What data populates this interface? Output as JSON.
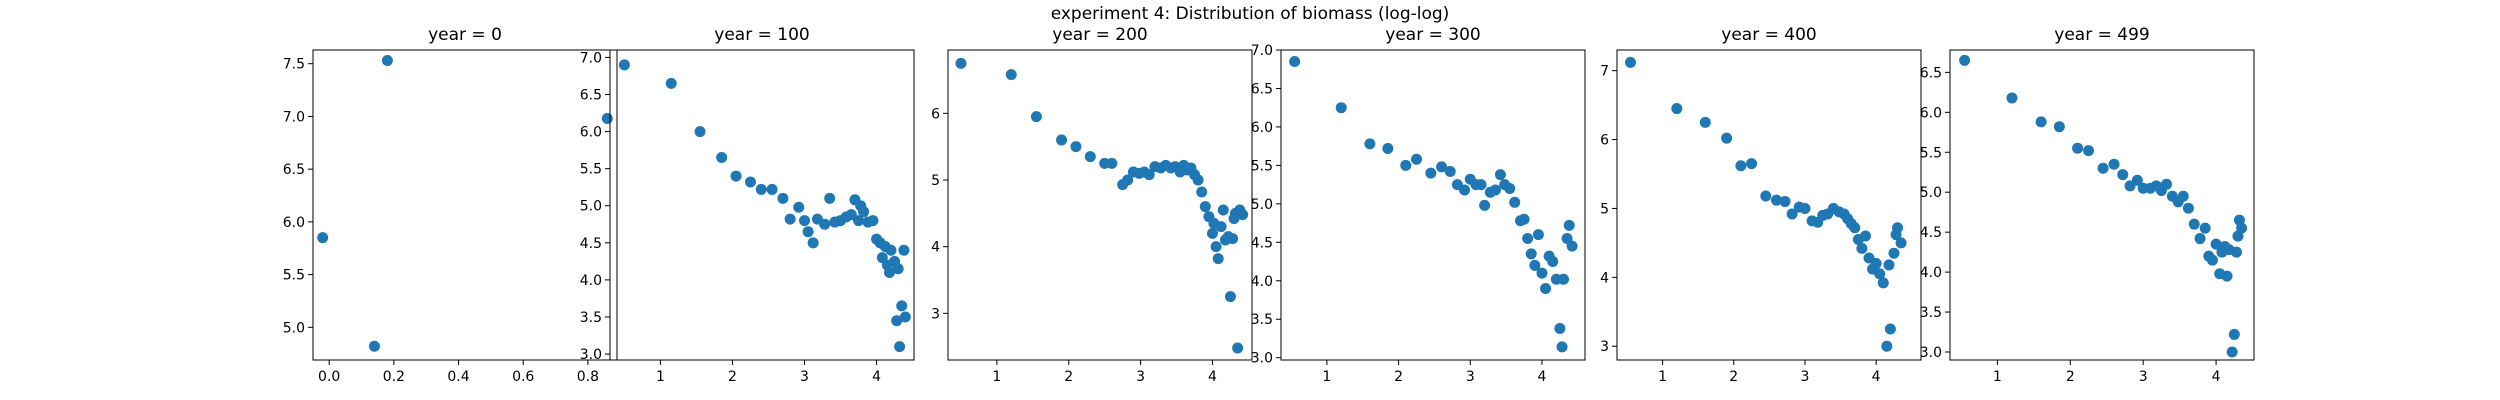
{
  "figure_title": "experiment 4: Distribution of biomass (log-log)",
  "chart_data": [
    {
      "type": "scatter",
      "title": "year = 0",
      "xlim": [
        -0.05,
        0.89
      ],
      "ylim": [
        4.69,
        7.63
      ],
      "xticks": [
        0.0,
        0.2,
        0.4,
        0.6,
        0.8
      ],
      "yticks": [
        5.0,
        5.5,
        6.0,
        6.5,
        7.0,
        7.5
      ],
      "color": "#1f77b4",
      "points": [
        [
          -0.02,
          5.85
        ],
        [
          0.14,
          4.82
        ],
        [
          0.18,
          7.53
        ],
        [
          0.86,
          6.98
        ]
      ]
    },
    {
      "type": "scatter",
      "title": "year = 100",
      "xlim": [
        0.3,
        4.52
      ],
      "ylim": [
        2.92,
        7.1
      ],
      "xticks": [
        1,
        2,
        3,
        4
      ],
      "yticks": [
        3.0,
        3.5,
        4.0,
        4.5,
        5.0,
        5.5,
        6.0,
        6.5,
        7.0
      ],
      "color": "#1f77b4",
      "points": [
        [
          0.5,
          6.9
        ],
        [
          1.15,
          6.65
        ],
        [
          1.55,
          6.0
        ],
        [
          1.85,
          5.65
        ],
        [
          2.05,
          5.4
        ],
        [
          2.25,
          5.32
        ],
        [
          2.4,
          5.22
        ],
        [
          2.55,
          5.22
        ],
        [
          2.7,
          5.1
        ],
        [
          2.8,
          4.82
        ],
        [
          2.92,
          4.98
        ],
        [
          3.0,
          4.8
        ],
        [
          3.05,
          4.65
        ],
        [
          3.12,
          4.5
        ],
        [
          3.18,
          4.82
        ],
        [
          3.28,
          4.75
        ],
        [
          3.35,
          5.1
        ],
        [
          3.42,
          4.78
        ],
        [
          3.5,
          4.8
        ],
        [
          3.58,
          4.85
        ],
        [
          3.65,
          4.88
        ],
        [
          3.7,
          5.08
        ],
        [
          3.75,
          4.8
        ],
        [
          3.78,
          5.0
        ],
        [
          3.82,
          4.92
        ],
        [
          3.88,
          4.78
        ],
        [
          3.95,
          4.8
        ],
        [
          4.0,
          4.55
        ],
        [
          4.05,
          4.5
        ],
        [
          4.08,
          4.3
        ],
        [
          4.12,
          4.45
        ],
        [
          4.15,
          4.2
        ],
        [
          4.18,
          4.1
        ],
        [
          4.2,
          4.4
        ],
        [
          4.25,
          4.25
        ],
        [
          4.28,
          3.45
        ],
        [
          4.3,
          4.15
        ],
        [
          4.32,
          3.1
        ],
        [
          4.35,
          3.65
        ],
        [
          4.38,
          4.4
        ],
        [
          4.4,
          3.5
        ]
      ]
    },
    {
      "type": "scatter",
      "title": "year = 200",
      "xlim": [
        0.32,
        4.55
      ],
      "ylim": [
        2.3,
        6.95
      ],
      "xticks": [
        1,
        2,
        3,
        4
      ],
      "yticks": [
        3,
        4,
        5,
        6
      ],
      "color": "#1f77b4",
      "points": [
        [
          0.5,
          6.75
        ],
        [
          1.2,
          6.58
        ],
        [
          1.55,
          5.95
        ],
        [
          1.9,
          5.6
        ],
        [
          2.1,
          5.5
        ],
        [
          2.3,
          5.35
        ],
        [
          2.5,
          5.25
        ],
        [
          2.6,
          5.25
        ],
        [
          2.75,
          4.93
        ],
        [
          2.82,
          5.0
        ],
        [
          2.9,
          5.12
        ],
        [
          2.98,
          5.1
        ],
        [
          3.05,
          5.12
        ],
        [
          3.12,
          5.08
        ],
        [
          3.2,
          5.2
        ],
        [
          3.28,
          5.18
        ],
        [
          3.35,
          5.22
        ],
        [
          3.42,
          5.18
        ],
        [
          3.48,
          5.2
        ],
        [
          3.55,
          5.12
        ],
        [
          3.6,
          5.22
        ],
        [
          3.65,
          5.15
        ],
        [
          3.7,
          5.18
        ],
        [
          3.75,
          5.08
        ],
        [
          3.8,
          5.0
        ],
        [
          3.85,
          4.82
        ],
        [
          3.9,
          4.6
        ],
        [
          3.95,
          4.45
        ],
        [
          4.0,
          4.2
        ],
        [
          4.02,
          4.35
        ],
        [
          4.05,
          4.0
        ],
        [
          4.08,
          3.82
        ],
        [
          4.12,
          4.3
        ],
        [
          4.15,
          4.55
        ],
        [
          4.18,
          4.1
        ],
        [
          4.22,
          4.15
        ],
        [
          4.25,
          3.25
        ],
        [
          4.28,
          4.12
        ],
        [
          4.3,
          4.42
        ],
        [
          4.32,
          4.5
        ],
        [
          4.35,
          2.48
        ],
        [
          4.38,
          4.55
        ],
        [
          4.42,
          4.48
        ]
      ]
    },
    {
      "type": "scatter",
      "title": "year = 300",
      "xlim": [
        0.36,
        4.6
      ],
      "ylim": [
        2.97,
        7.0
      ],
      "xticks": [
        1,
        2,
        3,
        4
      ],
      "yticks": [
        3.0,
        3.5,
        4.0,
        4.5,
        5.0,
        5.5,
        6.0,
        6.5,
        7.0
      ],
      "color": "#1f77b4",
      "points": [
        [
          0.55,
          6.85
        ],
        [
          1.2,
          6.25
        ],
        [
          1.6,
          5.78
        ],
        [
          1.85,
          5.72
        ],
        [
          2.1,
          5.5
        ],
        [
          2.25,
          5.58
        ],
        [
          2.45,
          5.4
        ],
        [
          2.6,
          5.48
        ],
        [
          2.72,
          5.42
        ],
        [
          2.82,
          5.25
        ],
        [
          2.92,
          5.18
        ],
        [
          3.0,
          5.32
        ],
        [
          3.08,
          5.25
        ],
        [
          3.15,
          5.25
        ],
        [
          3.2,
          4.98
        ],
        [
          3.28,
          5.15
        ],
        [
          3.35,
          5.18
        ],
        [
          3.42,
          5.38
        ],
        [
          3.48,
          5.25
        ],
        [
          3.55,
          5.2
        ],
        [
          3.62,
          5.02
        ],
        [
          3.7,
          4.78
        ],
        [
          3.75,
          4.8
        ],
        [
          3.8,
          4.55
        ],
        [
          3.85,
          4.35
        ],
        [
          3.9,
          4.2
        ],
        [
          3.95,
          4.6
        ],
        [
          4.0,
          4.1
        ],
        [
          4.05,
          3.9
        ],
        [
          4.1,
          4.32
        ],
        [
          4.15,
          4.25
        ],
        [
          4.2,
          4.02
        ],
        [
          4.25,
          3.38
        ],
        [
          4.28,
          3.14
        ],
        [
          4.3,
          4.02
        ],
        [
          4.35,
          4.55
        ],
        [
          4.38,
          4.72
        ],
        [
          4.42,
          4.45
        ]
      ]
    },
    {
      "type": "scatter",
      "title": "year = 400",
      "xlim": [
        0.36,
        4.63
      ],
      "ylim": [
        2.8,
        7.3
      ],
      "xticks": [
        1,
        2,
        3,
        4
      ],
      "yticks": [
        3,
        4,
        5,
        6,
        7
      ],
      "color": "#1f77b4",
      "points": [
        [
          0.55,
          7.12
        ],
        [
          1.2,
          6.45
        ],
        [
          1.6,
          6.25
        ],
        [
          1.9,
          6.02
        ],
        [
          2.1,
          5.62
        ],
        [
          2.25,
          5.65
        ],
        [
          2.45,
          5.18
        ],
        [
          2.6,
          5.12
        ],
        [
          2.72,
          5.1
        ],
        [
          2.82,
          4.92
        ],
        [
          2.92,
          5.02
        ],
        [
          3.0,
          5.0
        ],
        [
          3.1,
          4.82
        ],
        [
          3.18,
          4.8
        ],
        [
          3.25,
          4.9
        ],
        [
          3.32,
          4.92
        ],
        [
          3.4,
          5.0
        ],
        [
          3.48,
          4.95
        ],
        [
          3.55,
          4.92
        ],
        [
          3.6,
          4.85
        ],
        [
          3.65,
          4.78
        ],
        [
          3.7,
          4.72
        ],
        [
          3.75,
          4.55
        ],
        [
          3.8,
          4.42
        ],
        [
          3.85,
          4.6
        ],
        [
          3.9,
          4.28
        ],
        [
          3.95,
          4.12
        ],
        [
          4.0,
          4.2
        ],
        [
          4.05,
          4.05
        ],
        [
          4.1,
          3.92
        ],
        [
          4.15,
          3.0
        ],
        [
          4.18,
          4.18
        ],
        [
          4.2,
          3.25
        ],
        [
          4.25,
          4.35
        ],
        [
          4.28,
          4.62
        ],
        [
          4.3,
          4.72
        ],
        [
          4.35,
          4.5
        ]
      ]
    },
    {
      "type": "scatter",
      "title": "year = 499",
      "xlim": [
        0.35,
        4.52
      ],
      "ylim": [
        2.9,
        6.78
      ],
      "xticks": [
        1,
        2,
        3,
        4
      ],
      "yticks": [
        3.0,
        3.5,
        4.0,
        4.5,
        5.0,
        5.5,
        6.0,
        6.5
      ],
      "color": "#1f77b4",
      "points": [
        [
          0.55,
          6.65
        ],
        [
          1.2,
          6.18
        ],
        [
          1.6,
          5.88
        ],
        [
          1.85,
          5.82
        ],
        [
          2.1,
          5.55
        ],
        [
          2.25,
          5.52
        ],
        [
          2.45,
          5.3
        ],
        [
          2.6,
          5.35
        ],
        [
          2.72,
          5.22
        ],
        [
          2.82,
          5.08
        ],
        [
          2.92,
          5.15
        ],
        [
          3.0,
          5.05
        ],
        [
          3.1,
          5.05
        ],
        [
          3.18,
          5.08
        ],
        [
          3.25,
          5.02
        ],
        [
          3.32,
          5.1
        ],
        [
          3.4,
          4.95
        ],
        [
          3.48,
          4.88
        ],
        [
          3.55,
          4.95
        ],
        [
          3.62,
          4.8
        ],
        [
          3.7,
          4.6
        ],
        [
          3.78,
          4.42
        ],
        [
          3.85,
          4.55
        ],
        [
          3.9,
          4.2
        ],
        [
          3.95,
          4.15
        ],
        [
          4.0,
          4.35
        ],
        [
          4.05,
          3.98
        ],
        [
          4.08,
          4.25
        ],
        [
          4.12,
          4.32
        ],
        [
          4.15,
          3.95
        ],
        [
          4.18,
          4.28
        ],
        [
          4.22,
          3.0
        ],
        [
          4.25,
          3.22
        ],
        [
          4.28,
          4.25
        ],
        [
          4.3,
          4.45
        ],
        [
          4.32,
          4.65
        ],
        [
          4.35,
          4.55
        ]
      ]
    }
  ]
}
